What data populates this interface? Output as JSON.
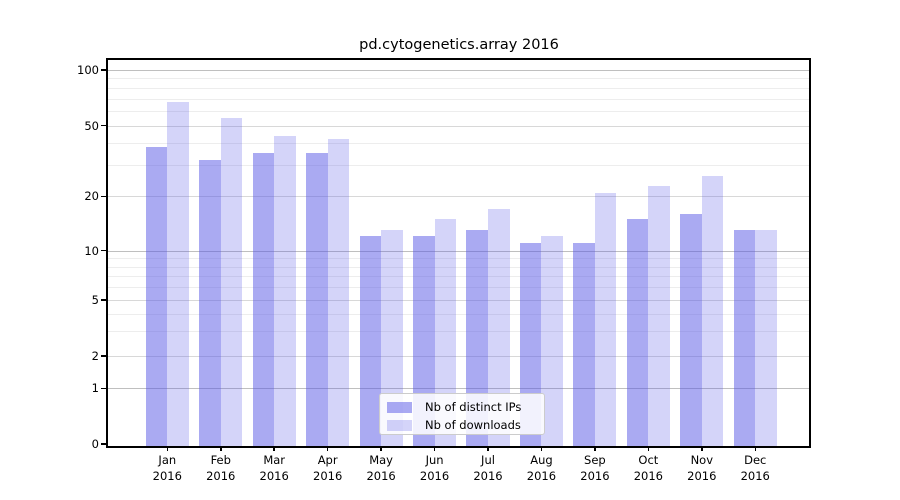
{
  "chart_data": {
    "type": "bar",
    "title": "pd.cytogenetics.array 2016",
    "categories": [
      "Jan 2016",
      "Feb 2016",
      "Mar 2016",
      "Apr 2016",
      "May 2016",
      "Jun 2016",
      "Jul 2016",
      "Aug 2016",
      "Sep 2016",
      "Oct 2016",
      "Nov 2016",
      "Dec 2016"
    ],
    "series": [
      {
        "name": "Nb of distinct IPs",
        "color": "rgba(85,85,230,0.5)",
        "values": [
          38,
          32,
          35,
          35,
          12,
          12,
          13,
          11,
          11,
          15,
          16,
          13
        ]
      },
      {
        "name": "Nb of downloads",
        "color": "rgba(85,85,230,0.25)",
        "values": [
          67,
          55,
          44,
          42,
          13,
          15,
          17,
          12,
          21,
          23,
          26,
          13
        ]
      }
    ],
    "xlabel": "",
    "ylabel": "",
    "yscale": "log-with-zero",
    "y_ticks": [
      0,
      1,
      2,
      5,
      10,
      20,
      50,
      100
    ],
    "y_minor_ticks": [
      3,
      4,
      6,
      7,
      8,
      9,
      30,
      40,
      60,
      70,
      80,
      90
    ],
    "ylim": [
      0,
      113
    ],
    "grid": true,
    "legend_position": "lower-center",
    "bar_grouping": "paired-side-by-side"
  }
}
